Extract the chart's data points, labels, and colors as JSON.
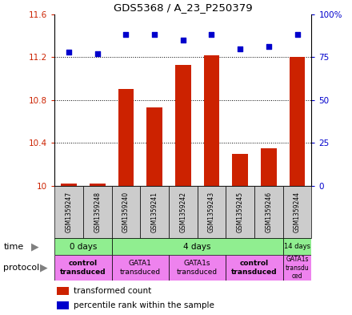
{
  "title": "GDS5368 / A_23_P250379",
  "samples": [
    "GSM1359247",
    "GSM1359248",
    "GSM1359240",
    "GSM1359241",
    "GSM1359242",
    "GSM1359243",
    "GSM1359245",
    "GSM1359246",
    "GSM1359244"
  ],
  "bar_values": [
    10.02,
    10.02,
    10.9,
    10.73,
    11.13,
    11.22,
    10.3,
    10.35,
    11.2
  ],
  "dot_values": [
    78,
    77,
    88,
    88,
    85,
    88,
    80,
    81,
    88
  ],
  "ylim_left": [
    10,
    11.6
  ],
  "ylim_right": [
    0,
    100
  ],
  "yticks_left": [
    10,
    10.4,
    10.8,
    11.2,
    11.6
  ],
  "yticks_right": [
    0,
    25,
    50,
    75,
    100
  ],
  "bar_color": "#cc2200",
  "dot_color": "#0000cc",
  "bar_width": 0.55,
  "grid_color": "black",
  "time_groups": [
    {
      "label": "0 days",
      "start": 0,
      "end": 2,
      "color": "#90ee90"
    },
    {
      "label": "4 days",
      "start": 2,
      "end": 8,
      "color": "#90ee90"
    },
    {
      "label": "14 days",
      "start": 8,
      "end": 9,
      "color": "#90ee90"
    }
  ],
  "protocol_groups": [
    {
      "label": "control\ntransduced",
      "start": 0,
      "end": 2,
      "color": "#ee82ee",
      "bold": true
    },
    {
      "label": "GATA1\ntransduced",
      "start": 2,
      "end": 4,
      "color": "#ee82ee",
      "bold": false
    },
    {
      "label": "GATA1s\ntransduced",
      "start": 4,
      "end": 6,
      "color": "#ee82ee",
      "bold": false
    },
    {
      "label": "control\ntransduced",
      "start": 6,
      "end": 8,
      "color": "#ee82ee",
      "bold": true
    },
    {
      "label": "GATA1s\ntransdu\nced",
      "start": 8,
      "end": 9,
      "color": "#ee82ee",
      "bold": false
    }
  ],
  "sample_box_color": "#cccccc",
  "background_color": "#ffffff"
}
